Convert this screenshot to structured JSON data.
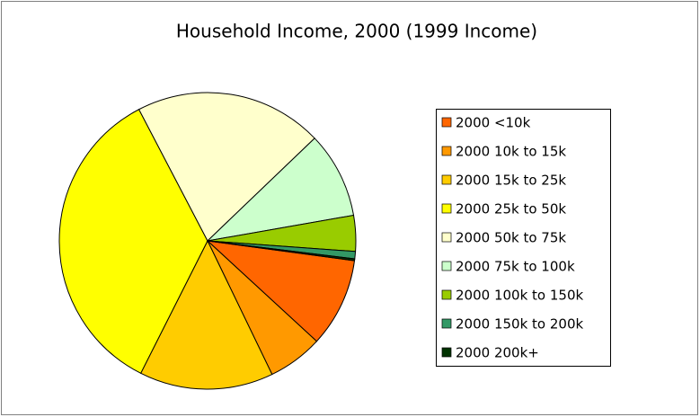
{
  "chart_data": {
    "type": "pie",
    "title": "Household Income, 2000 (1999 Income)",
    "categories": [
      "2000 <10k",
      "2000 10k to 15k",
      "2000 15k to 25k",
      "2000 25k to 50k",
      "2000 50k to 75k",
      "2000 75k to 100k",
      "2000 100k to 150k",
      "2000 150k to 200k",
      "2000 200k+"
    ],
    "values": [
      9.7,
      6.0,
      14.6,
      34.9,
      20.5,
      9.4,
      3.9,
      0.8,
      0.2
    ],
    "colors": [
      "#ff6600",
      "#ff9900",
      "#ffcc00",
      "#ffff00",
      "#ffffcc",
      "#ccffcc",
      "#99cc00",
      "#339966",
      "#003300"
    ],
    "legend": "right"
  }
}
